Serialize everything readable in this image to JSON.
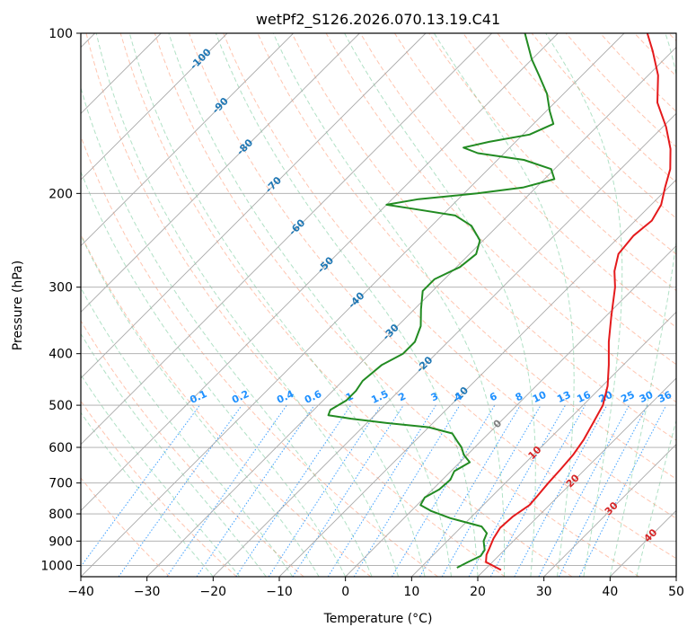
{
  "chart_data": {
    "type": "line",
    "title": "wetPf2_S126.2026.070.13.19.C41",
    "xlabel": "Temperature (°C)",
    "ylabel": "Pressure (hPa)",
    "xlim": [
      -40,
      50
    ],
    "ylim": [
      1050,
      100
    ],
    "y_scale": "log",
    "x_ticks": [
      -40,
      -30,
      -20,
      -10,
      0,
      10,
      20,
      30,
      40,
      50
    ],
    "y_ticks": [
      1000,
      900,
      800,
      700,
      600,
      500,
      400,
      300,
      200,
      100
    ],
    "grid": true,
    "skew": true,
    "colors": {
      "temperature": "#e41a1c",
      "dewpoint": "#228b22",
      "isotherm": "#a9a9a9",
      "dry_adiabat": "#ff7f50",
      "moist_adiabat": "#3cb371",
      "mixing_ratio": "#1e90ff",
      "isotherm_label": "#1f77b4",
      "mixing_label": "#1e90ff",
      "zero_label": "#808080",
      "warm_label": "#d62728"
    },
    "isotherm_labels": [
      {
        "value": -100,
        "text": "-100",
        "p": 112
      },
      {
        "value": -90,
        "text": "-90",
        "p": 137
      },
      {
        "value": -80,
        "text": "-80",
        "p": 164
      },
      {
        "value": -70,
        "text": "-70",
        "p": 193
      },
      {
        "value": -60,
        "text": "-60",
        "p": 232
      },
      {
        "value": -50,
        "text": "-50",
        "p": 273
      },
      {
        "value": -40,
        "text": "-40",
        "p": 318
      },
      {
        "value": -30,
        "text": "-30",
        "p": 365
      },
      {
        "value": -20,
        "text": "-20",
        "p": 420
      },
      {
        "value": -10,
        "text": "-10",
        "p": 479
      },
      {
        "value": 0,
        "text": "0",
        "p": 543
      },
      {
        "value": 10,
        "text": "10",
        "p": 615
      },
      {
        "value": 20,
        "text": "20",
        "p": 695
      },
      {
        "value": 30,
        "text": "30",
        "p": 783
      },
      {
        "value": 40,
        "text": "40",
        "p": 880
      }
    ],
    "mixing_ratio_labels": {
      "p": 500,
      "values": [
        "0.1",
        "0.2",
        "0.4",
        "0.6",
        "1",
        "1.5",
        "2",
        "3",
        "4",
        "6",
        "8",
        "10",
        "13",
        "16",
        "20",
        "25",
        "30",
        "36"
      ]
    },
    "series": [
      {
        "name": "",
        "role": "temperature",
        "points": [
          {
            "p": 1020,
            "t": 22.5
          },
          {
            "p": 985,
            "t": 19.0
          },
          {
            "p": 955,
            "t": 18.0
          },
          {
            "p": 930,
            "t": 17.5
          },
          {
            "p": 890,
            "t": 16.6
          },
          {
            "p": 850,
            "t": 16.0
          },
          {
            "p": 810,
            "t": 16.2
          },
          {
            "p": 770,
            "t": 17.0
          },
          {
            "p": 740,
            "t": 16.8
          },
          {
            "p": 700,
            "t": 16.5
          },
          {
            "p": 660,
            "t": 16.3
          },
          {
            "p": 620,
            "t": 16.0
          },
          {
            "p": 580,
            "t": 15.3
          },
          {
            "p": 540,
            "t": 14.2
          },
          {
            "p": 500,
            "t": 13.0
          },
          {
            "p": 460,
            "t": 10.8
          },
          {
            "p": 420,
            "t": 7.8
          },
          {
            "p": 380,
            "t": 4.3
          },
          {
            "p": 340,
            "t": 0.8
          },
          {
            "p": 300,
            "t": -3.0
          },
          {
            "p": 280,
            "t": -5.5
          },
          {
            "p": 260,
            "t": -7.5
          },
          {
            "p": 240,
            "t": -8.0
          },
          {
            "p": 225,
            "t": -7.5
          },
          {
            "p": 210,
            "t": -8.5
          },
          {
            "p": 195,
            "t": -10.5
          },
          {
            "p": 180,
            "t": -12.5
          },
          {
            "p": 165,
            "t": -15.5
          },
          {
            "p": 150,
            "t": -19.5
          },
          {
            "p": 135,
            "t": -24.5
          },
          {
            "p": 120,
            "t": -28.5
          },
          {
            "p": 108,
            "t": -33.0
          },
          {
            "p": 100,
            "t": -36.5
          }
        ]
      },
      {
        "name": "",
        "role": "dewpoint",
        "points": [
          {
            "p": 1010,
            "t": 15.5
          },
          {
            "p": 985,
            "t": 16.3
          },
          {
            "p": 960,
            "t": 17.3
          },
          {
            "p": 935,
            "t": 17.0
          },
          {
            "p": 900,
            "t": 15.5
          },
          {
            "p": 870,
            "t": 14.8
          },
          {
            "p": 845,
            "t": 13.0
          },
          {
            "p": 815,
            "t": 7.0
          },
          {
            "p": 790,
            "t": 3.0
          },
          {
            "p": 770,
            "t": 0.5
          },
          {
            "p": 745,
            "t": 0.0
          },
          {
            "p": 720,
            "t": 1.0
          },
          {
            "p": 690,
            "t": 1.2
          },
          {
            "p": 665,
            "t": 0.5
          },
          {
            "p": 640,
            "t": 1.5
          },
          {
            "p": 620,
            "t": -0.5
          },
          {
            "p": 600,
            "t": -2.0
          },
          {
            "p": 585,
            "t": -3.5
          },
          {
            "p": 565,
            "t": -5.5
          },
          {
            "p": 550,
            "t": -10.0
          },
          {
            "p": 540,
            "t": -17.0
          },
          {
            "p": 530,
            "t": -23.0
          },
          {
            "p": 522,
            "t": -27.0
          },
          {
            "p": 510,
            "t": -27.5
          },
          {
            "p": 490,
            "t": -26.5
          },
          {
            "p": 470,
            "t": -26.5
          },
          {
            "p": 450,
            "t": -27.0
          },
          {
            "p": 420,
            "t": -26.5
          },
          {
            "p": 400,
            "t": -25.0
          },
          {
            "p": 380,
            "t": -25.0
          },
          {
            "p": 355,
            "t": -26.5
          },
          {
            "p": 330,
            "t": -29.0
          },
          {
            "p": 305,
            "t": -31.5
          },
          {
            "p": 290,
            "t": -31.5
          },
          {
            "p": 275,
            "t": -29.5
          },
          {
            "p": 260,
            "t": -29.0
          },
          {
            "p": 245,
            "t": -30.5
          },
          {
            "p": 230,
            "t": -34.0
          },
          {
            "p": 220,
            "t": -38.0
          },
          {
            "p": 214,
            "t": -45.0
          },
          {
            "p": 210,
            "t": -50.0
          },
          {
            "p": 205,
            "t": -46.0
          },
          {
            "p": 200,
            "t": -38.0
          },
          {
            "p": 195,
            "t": -32.0
          },
          {
            "p": 188,
            "t": -28.5
          },
          {
            "p": 180,
            "t": -30.5
          },
          {
            "p": 173,
            "t": -36.0
          },
          {
            "p": 168,
            "t": -44.0
          },
          {
            "p": 164,
            "t": -47.0
          },
          {
            "p": 160,
            "t": -44.0
          },
          {
            "p": 155,
            "t": -39.0
          },
          {
            "p": 148,
            "t": -37.0
          },
          {
            "p": 140,
            "t": -39.5
          },
          {
            "p": 130,
            "t": -42.5
          },
          {
            "p": 120,
            "t": -46.5
          },
          {
            "p": 112,
            "t": -50.0
          },
          {
            "p": 100,
            "t": -55.0
          }
        ]
      }
    ]
  }
}
